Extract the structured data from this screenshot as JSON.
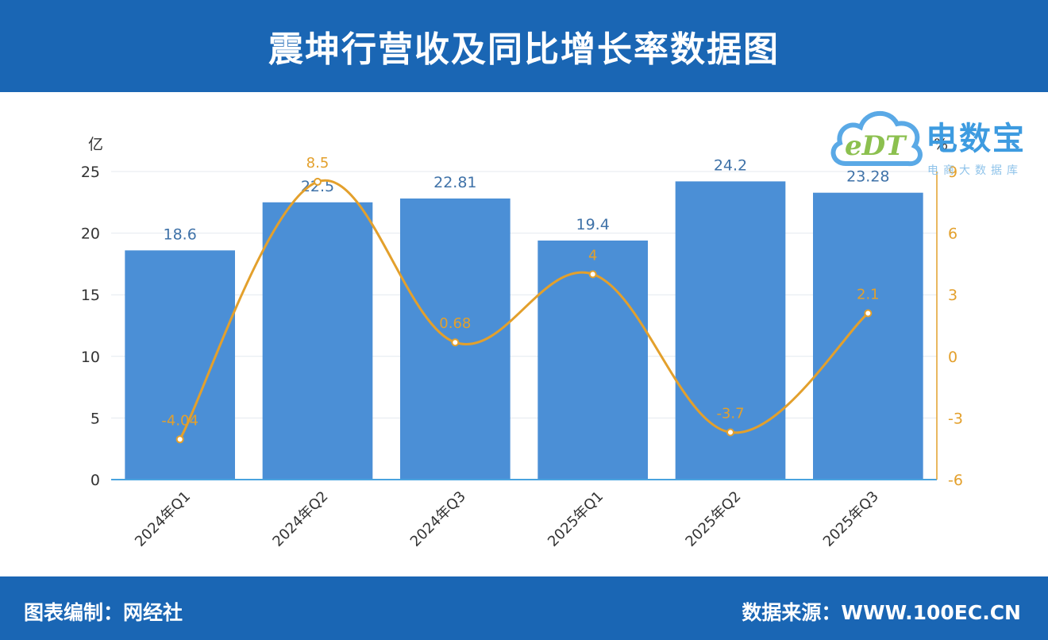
{
  "header": {
    "title": "震坤行营收及同比增长率数据图"
  },
  "footer": {
    "left": "图表编制：网经社",
    "right": "数据来源：WWW.100EC.CN"
  },
  "logo": {
    "main": "电数宝",
    "sub": "电商大数据库",
    "mark": "eDT"
  },
  "colors": {
    "bar": "#4b8fd6",
    "line": "#e3a02c",
    "axis_left": "#333333",
    "axis_right": "#e3a02c",
    "header": "#1a66b4"
  },
  "chart_data": {
    "type": "bar",
    "categories": [
      "2024年Q1",
      "2024年Q2",
      "2024年Q3",
      "2025年Q1",
      "2025年Q2",
      "2025年Q3"
    ],
    "series": [
      {
        "type": "bar",
        "values": [
          18.6,
          22.5,
          22.81,
          19.4,
          24.2,
          23.28
        ],
        "labels": [
          "18.6",
          "22.5",
          "22.81",
          "19.4",
          "24.2",
          "23.28"
        ]
      },
      {
        "type": "line",
        "values": [
          -4.04,
          8.5,
          0.68,
          4,
          -3.7,
          2.1
        ],
        "labels": [
          "-4.04",
          "8.5",
          "0.68",
          "4",
          "-3.7",
          "2.1"
        ]
      }
    ],
    "y_left": {
      "label": "亿",
      "ticks": [
        "0",
        "5",
        "10",
        "15",
        "20",
        "25"
      ],
      "lim": [
        0,
        25
      ]
    },
    "y_right": {
      "label": "%",
      "ticks": [
        "-6",
        "-3",
        "0",
        "3",
        "6",
        "9"
      ],
      "lim": [
        -6,
        9
      ]
    },
    "grid": true
  }
}
